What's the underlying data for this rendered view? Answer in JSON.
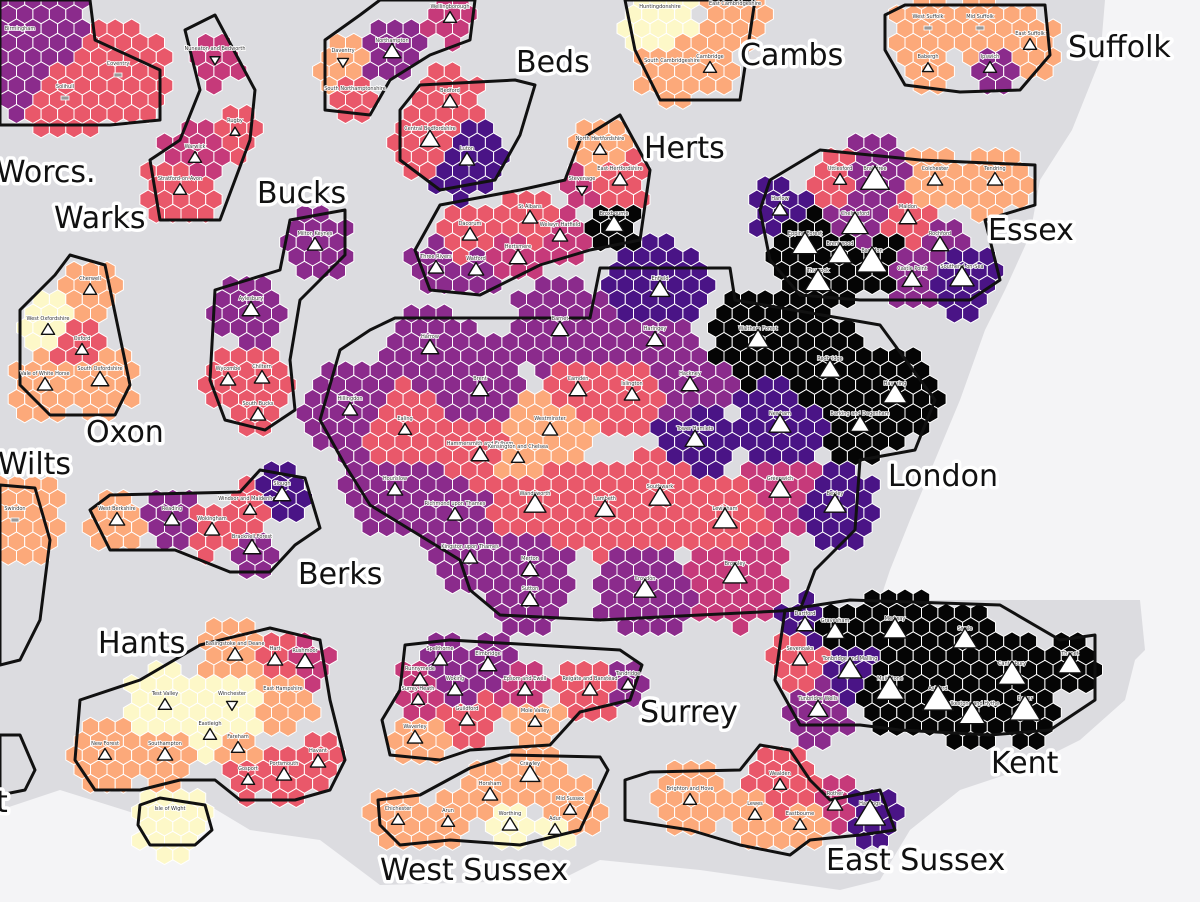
{
  "legend_colors": {
    "c0": "#fdf8c8",
    "c1": "#fca97a",
    "c2": "#e9586a",
    "c3": "#c63a7a",
    "c4": "#8b2b8c",
    "c5": "#4a1486",
    "c6": "#050505"
  },
  "counties": [
    {
      "name": "Beds"
    },
    {
      "name": "Cambs"
    },
    {
      "name": "Suffolk"
    },
    {
      "name": "Worcs."
    },
    {
      "name": "Herts"
    },
    {
      "name": "Warks"
    },
    {
      "name": "Bucks"
    },
    {
      "name": "Essex"
    },
    {
      "name": "Oxon"
    },
    {
      "name": "Wilts"
    },
    {
      "name": "London"
    },
    {
      "name": "Berks"
    },
    {
      "name": "Hants"
    },
    {
      "name": "Surrey"
    },
    {
      "name": "Kent"
    },
    {
      "name": "West Sussex"
    },
    {
      "name": "East Sussex"
    },
    {
      "name": "t"
    }
  ],
  "regions": [
    {
      "name": "Birmingham",
      "color": "c4",
      "marker": "none",
      "size": 0
    },
    {
      "name": "Coventry",
      "color": "c2",
      "marker": "square",
      "size": 0
    },
    {
      "name": "Solihull",
      "color": "c2",
      "marker": "square",
      "size": 0
    },
    {
      "name": "Stratford-on-Avon",
      "color": "c2",
      "marker": "up",
      "size": 12
    },
    {
      "name": "Warwick",
      "color": "c3",
      "marker": "up",
      "size": 12
    },
    {
      "name": "Rugby",
      "color": "c2",
      "marker": "up",
      "size": 9
    },
    {
      "name": "Nuneaton and Bedworth",
      "color": "c3",
      "marker": "down",
      "size": 9
    },
    {
      "name": "Northampton",
      "color": "c4",
      "marker": "up",
      "size": 16
    },
    {
      "name": "Wellingborough",
      "color": "c3",
      "marker": "up",
      "size": 12
    },
    {
      "name": "Daventry",
      "color": "c1",
      "marker": "down",
      "size": 10
    },
    {
      "name": "South Northamptonshire",
      "color": "c2",
      "marker": "none",
      "size": 0
    },
    {
      "name": "Huntingdonshire",
      "color": "c0",
      "marker": "none",
      "size": 0
    },
    {
      "name": "East Cambridgeshire",
      "color": "c1",
      "marker": "none",
      "size": 0
    },
    {
      "name": "South Cambridgeshire",
      "color": "c1",
      "marker": "none",
      "size": 0
    },
    {
      "name": "Cambridge",
      "color": "c1",
      "marker": "up",
      "size": 12
    },
    {
      "name": "West Suffolk",
      "color": "c1",
      "marker": "square",
      "size": 0
    },
    {
      "name": "Mid Suffolk",
      "color": "c1",
      "marker": "square",
      "size": 0
    },
    {
      "name": "Ipswich",
      "color": "c4",
      "marker": "up",
      "size": 12
    },
    {
      "name": "East Suffolk",
      "color": "c1",
      "marker": "up",
      "size": 12
    },
    {
      "name": "Babergh",
      "color": "c1",
      "marker": "up",
      "size": 10
    },
    {
      "name": "Bedford",
      "color": "c2",
      "marker": "up",
      "size": 14
    },
    {
      "name": "Central Bedfordshire",
      "color": "c2",
      "marker": "up",
      "size": 18
    },
    {
      "name": "Luton",
      "color": "c5",
      "marker": "up",
      "size": 14
    },
    {
      "name": "North Hertfordshire",
      "color": "c1",
      "marker": "up",
      "size": 12
    },
    {
      "name": "East Hertfordshire",
      "color": "c2",
      "marker": "up",
      "size": 14
    },
    {
      "name": "Stevenage",
      "color": "c3",
      "marker": "down",
      "size": 10
    },
    {
      "name": "Broxbourne",
      "color": "c6",
      "marker": "up",
      "size": 18
    },
    {
      "name": "St Albans",
      "color": "c2",
      "marker": "up",
      "size": 14
    },
    {
      "name": "Dacorum",
      "color": "c2",
      "marker": "up",
      "size": 14
    },
    {
      "name": "Three Rivers",
      "color": "c4",
      "marker": "up",
      "size": 14
    },
    {
      "name": "Watford",
      "color": "c4",
      "marker": "up",
      "size": 14
    },
    {
      "name": "Hertsmere",
      "color": "c3",
      "marker": "up",
      "size": 16
    },
    {
      "name": "Welwyn Hatfield",
      "color": "c3",
      "marker": "up",
      "size": 14
    },
    {
      "name": "Milton Keynes",
      "color": "c4",
      "marker": "up",
      "size": 14
    },
    {
      "name": "Aylesbury",
      "color": "c4",
      "marker": "up",
      "size": 16
    },
    {
      "name": "Wycombe",
      "color": "c2",
      "marker": "up",
      "size": 14
    },
    {
      "name": "Chiltern",
      "color": "c2",
      "marker": "up",
      "size": 14
    },
    {
      "name": "South Bucks",
      "color": "c2",
      "marker": "up",
      "size": 14
    },
    {
      "name": "Cherwell",
      "color": "c1",
      "marker": "up",
      "size": 12
    },
    {
      "name": "West Oxfordshire",
      "color": "c0",
      "marker": "up",
      "size": 12
    },
    {
      "name": "Oxford",
      "color": "c2",
      "marker": "up",
      "size": 12
    },
    {
      "name": "Vale of White Horse",
      "color": "c1",
      "marker": "up",
      "size": 14
    },
    {
      "name": "South Oxfordshire",
      "color": "c1",
      "marker": "up",
      "size": 16
    },
    {
      "name": "Swindon",
      "color": "c1",
      "marker": "square",
      "size": 0
    },
    {
      "name": "West Berkshire",
      "color": "c1",
      "marker": "up",
      "size": 14
    },
    {
      "name": "Reading",
      "color": "c4",
      "marker": "up",
      "size": 14
    },
    {
      "name": "Wokingham",
      "color": "c2",
      "marker": "up",
      "size": 14
    },
    {
      "name": "Windsor and Maidenhead",
      "color": "c2",
      "marker": "up",
      "size": 12
    },
    {
      "name": "Slough",
      "color": "c5",
      "marker": "up",
      "size": 16
    },
    {
      "name": "Bracknell Forest",
      "color": "c4",
      "marker": "up",
      "size": 16
    },
    {
      "name": "Enfield",
      "color": "c5",
      "marker": "up",
      "size": 18
    },
    {
      "name": "Barnet",
      "color": "c4",
      "marker": "up",
      "size": 16
    },
    {
      "name": "Haringey",
      "color": "c4",
      "marker": "up",
      "size": 16
    },
    {
      "name": "Waltham Forest",
      "color": "c6",
      "marker": "up",
      "size": 20
    },
    {
      "name": "Harrow",
      "color": "c4",
      "marker": "up",
      "size": 16
    },
    {
      "name": "Hillingdon",
      "color": "c4",
      "marker": "up",
      "size": 14
    },
    {
      "name": "Brent",
      "color": "c4",
      "marker": "up",
      "size": 16
    },
    {
      "name": "Camden",
      "color": "c2",
      "marker": "up",
      "size": 16
    },
    {
      "name": "Islington",
      "color": "c2",
      "marker": "up",
      "size": 14
    },
    {
      "name": "Hackney",
      "color": "c4",
      "marker": "up",
      "size": 16
    },
    {
      "name": "Redbridge",
      "color": "c6",
      "marker": "up",
      "size": 20
    },
    {
      "name": "Havering",
      "color": "c6",
      "marker": "up",
      "size": 22
    },
    {
      "name": "Barking and Dagenham",
      "color": "c6",
      "marker": "up",
      "size": 18
    },
    {
      "name": "Newham",
      "color": "c5",
      "marker": "up",
      "size": 20
    },
    {
      "name": "Tower Hamlets",
      "color": "c5",
      "marker": "up",
      "size": 18
    },
    {
      "name": "Ealing",
      "color": "c2",
      "marker": "up",
      "size": 12
    },
    {
      "name": "Hammersmith and Fulham",
      "color": "c2",
      "marker": "up",
      "size": 16
    },
    {
      "name": "Kensington and Chelsea",
      "color": "c1",
      "marker": "up",
      "size": 12
    },
    {
      "name": "Westminster",
      "color": "c1",
      "marker": "up",
      "size": 14
    },
    {
      "name": "Hounslow",
      "color": "c4",
      "marker": "up",
      "size": 14
    },
    {
      "name": "Richmond upon Thames",
      "color": "c4",
      "marker": "up",
      "size": 14
    },
    {
      "name": "Wandsworth",
      "color": "c2",
      "marker": "up",
      "size": 20
    },
    {
      "name": "Lambeth",
      "color": "c2",
      "marker": "up",
      "size": 18
    },
    {
      "name": "Southwark",
      "color": "c2",
      "marker": "up",
      "size": 20
    },
    {
      "name": "Greenwich",
      "color": "c3",
      "marker": "up",
      "size": 20
    },
    {
      "name": "Lewisham",
      "color": "c2",
      "marker": "up",
      "size": 22
    },
    {
      "name": "Bexley",
      "color": "c5",
      "marker": "up",
      "size": 20
    },
    {
      "name": "Kingston upon Thames",
      "color": "c4",
      "marker": "up",
      "size": 14
    },
    {
      "name": "Merton",
      "color": "c4",
      "marker": "up",
      "size": 16
    },
    {
      "name": "Sutton",
      "color": "c4",
      "marker": "up",
      "size": 16
    },
    {
      "name": "Croydon",
      "color": "c4",
      "marker": "up",
      "size": 20
    },
    {
      "name": "Bromley",
      "color": "c3",
      "marker": "up",
      "size": 22
    },
    {
      "name": "Uttlesford",
      "color": "c2",
      "marker": "up",
      "size": 12
    },
    {
      "name": "Braintree",
      "color": "c4",
      "marker": "up",
      "size": 26
    },
    {
      "name": "Colchester",
      "color": "c1",
      "marker": "up",
      "size": 14
    },
    {
      "name": "Tendring",
      "color": "c1",
      "marker": "up",
      "size": 14
    },
    {
      "name": "Harlow",
      "color": "c5",
      "marker": "up",
      "size": 14
    },
    {
      "name": "Epping Forest",
      "color": "c6",
      "marker": "up",
      "size": 24
    },
    {
      "name": "Chelmsford",
      "color": "c4",
      "marker": "up",
      "size": 24
    },
    {
      "name": "Maldon",
      "color": "c2",
      "marker": "up",
      "size": 16
    },
    {
      "name": "Brentwood",
      "color": "c6",
      "marker": "up",
      "size": 22
    },
    {
      "name": "Basildon",
      "color": "c6",
      "marker": "up",
      "size": 28
    },
    {
      "name": "Rochford",
      "color": "c4",
      "marker": "up",
      "size": 16
    },
    {
      "name": "Thurrock",
      "color": "c6",
      "marker": "up",
      "size": 24
    },
    {
      "name": "Castle Point",
      "color": "c4",
      "marker": "up",
      "size": 18
    },
    {
      "name": "Southend-on-Sea",
      "color": "c5",
      "marker": "up",
      "size": 22
    },
    {
      "name": "Dartford",
      "color": "c5",
      "marker": "up",
      "size": 16
    },
    {
      "name": "Gravesham",
      "color": "c6",
      "marker": "up",
      "size": 18
    },
    {
      "name": "Medway",
      "color": "c6",
      "marker": "up",
      "size": 22
    },
    {
      "name": "Swale",
      "color": "c6",
      "marker": "up",
      "size": 22
    },
    {
      "name": "Canterbury",
      "color": "c6",
      "marker": "up",
      "size": 26
    },
    {
      "name": "Thanet",
      "color": "c6",
      "marker": "up",
      "size": 22
    },
    {
      "name": "Sevenoaks",
      "color": "c2",
      "marker": "up",
      "size": 14
    },
    {
      "name": "Tonbridge and Malling",
      "color": "c5",
      "marker": "up",
      "size": 22
    },
    {
      "name": "Maidstone",
      "color": "c6",
      "marker": "up",
      "size": 26
    },
    {
      "name": "Ashford",
      "color": "c6",
      "marker": "up",
      "size": 28
    },
    {
      "name": "Dover",
      "color": "c6",
      "marker": "up",
      "size": 28
    },
    {
      "name": "Tunbridge Wells",
      "color": "c4",
      "marker": "up",
      "size": 18
    },
    {
      "name": "Folkestone and Hythe",
      "color": "c6",
      "marker": "up",
      "size": 24
    },
    {
      "name": "Spelthorne",
      "color": "c4",
      "marker": "up",
      "size": 14
    },
    {
      "name": "Runnymede",
      "color": "c3",
      "marker": "up",
      "size": 14
    },
    {
      "name": "Elmbridge",
      "color": "c4",
      "marker": "up",
      "size": 16
    },
    {
      "name": "Epsom and Ewell",
      "color": "c3",
      "marker": "up",
      "size": 14
    },
    {
      "name": "Woking",
      "color": "c4",
      "marker": "up",
      "size": 14
    },
    {
      "name": "Surrey Heath",
      "color": "c3",
      "marker": "up",
      "size": 12
    },
    {
      "name": "Reigate and Banstead",
      "color": "c2",
      "marker": "up",
      "size": 14
    },
    {
      "name": "Tandridge",
      "color": "c4",
      "marker": "up",
      "size": 12
    },
    {
      "name": "Guildford",
      "color": "c2",
      "marker": "up",
      "size": 14
    },
    {
      "name": "Mole Valley",
      "color": "c1",
      "marker": "up",
      "size": 12
    },
    {
      "name": "Waverley",
      "color": "c1",
      "marker": "up",
      "size": 14
    },
    {
      "name": "Basingstoke and Deane",
      "color": "c1",
      "marker": "up",
      "size": 14
    },
    {
      "name": "Hart",
      "color": "c2",
      "marker": "up",
      "size": 14
    },
    {
      "name": "Rushmoor",
      "color": "c3",
      "marker": "up",
      "size": 16
    },
    {
      "name": "Test Valley",
      "color": "c0",
      "marker": "up",
      "size": 12
    },
    {
      "name": "Winchester",
      "color": "c0",
      "marker": "down",
      "size": 10
    },
    {
      "name": "East Hampshire",
      "color": "c1",
      "marker": "none",
      "size": 0
    },
    {
      "name": "Eastleigh",
      "color": "c0",
      "marker": "up",
      "size": 12
    },
    {
      "name": "Southampton",
      "color": "c1",
      "marker": "up",
      "size": 14
    },
    {
      "name": "New Forest",
      "color": "c1",
      "marker": "up",
      "size": 12
    },
    {
      "name": "Fareham",
      "color": "c1",
      "marker": "up",
      "size": 12
    },
    {
      "name": "Gosport",
      "color": "c2",
      "marker": "up",
      "size": 12
    },
    {
      "name": "Portsmouth",
      "color": "c2",
      "marker": "up",
      "size": 14
    },
    {
      "name": "Havant",
      "color": "c2",
      "marker": "up",
      "size": 14
    },
    {
      "name": "Isle of Wight",
      "color": "c0",
      "marker": "none",
      "size": 0
    },
    {
      "name": "Chichester",
      "color": "c1",
      "marker": "up",
      "size": 12
    },
    {
      "name": "Arun",
      "color": "c1",
      "marker": "up",
      "size": 12
    },
    {
      "name": "Horsham",
      "color": "c1",
      "marker": "up",
      "size": 14
    },
    {
      "name": "Crawley",
      "color": "c1",
      "marker": "up",
      "size": 18
    },
    {
      "name": "Mid Sussex",
      "color": "c1",
      "marker": "up",
      "size": 12
    },
    {
      "name": "Worthing",
      "color": "c0",
      "marker": "up",
      "size": 14
    },
    {
      "name": "Adur",
      "color": "c0",
      "marker": "up",
      "size": 12
    },
    {
      "name": "Wealden",
      "color": "c2",
      "marker": "up",
      "size": 12
    },
    {
      "name": "Brighton and Hove",
      "color": "c1",
      "marker": "up",
      "size": 12
    },
    {
      "name": "Lewes",
      "color": "c1",
      "marker": "up",
      "size": 12
    },
    {
      "name": "Eastbourne",
      "color": "c1",
      "marker": "up",
      "size": 12
    },
    {
      "name": "Rother",
      "color": "c3",
      "marker": "up",
      "size": 14
    },
    {
      "name": "Hastings",
      "color": "c5",
      "marker": "up",
      "size": 28
    }
  ]
}
